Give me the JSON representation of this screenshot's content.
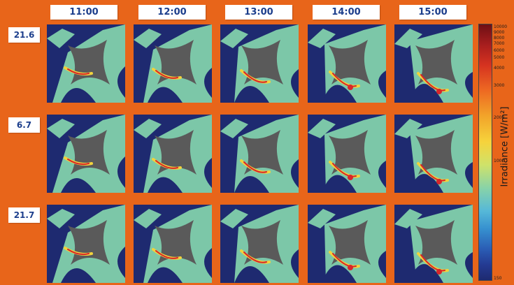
{
  "columns": [
    "11:00",
    "12:00",
    "13:00",
    "14:00",
    "15:00"
  ],
  "rows": [
    "21.6",
    "6.7",
    "21.7"
  ],
  "colorbar": {
    "title": "Irradiance [W/m²]",
    "ticks": [
      "10000",
      "9000",
      "8000",
      "7000",
      "6000",
      "5000",
      "4000",
      "3000",
      "2000",
      "1000",
      "150"
    ]
  },
  "colors": {
    "background": "#e8651a",
    "sky": "#1e2a70",
    "sunlit": "#7cc7a8",
    "obstacle": "#5a5a5a",
    "hotspot": "#d8262a",
    "warm": "#f2d23c"
  }
}
